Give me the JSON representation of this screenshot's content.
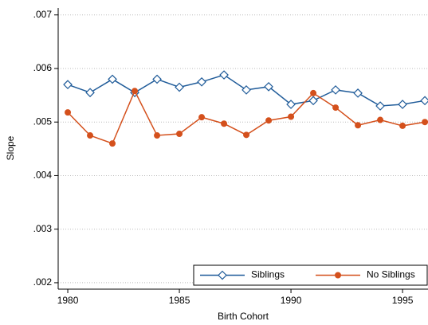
{
  "chart_data": {
    "type": "line",
    "x_label": "Birth Cohort",
    "y_label": "Slope",
    "x": [
      1980,
      1981,
      1982,
      1983,
      1984,
      1985,
      1986,
      1987,
      1988,
      1989,
      1990,
      1991,
      1992,
      1993,
      1994,
      1995,
      1996
    ],
    "series": [
      {
        "name": "Siblings",
        "color": "#1f5b99",
        "marker": "diamond-open",
        "values": [
          0.0057,
          0.00555,
          0.0058,
          0.00555,
          0.0058,
          0.00565,
          0.00575,
          0.00588,
          0.0056,
          0.00566,
          0.00533,
          0.0054,
          0.0056,
          0.00554,
          0.0053,
          0.00533,
          0.0054
        ]
      },
      {
        "name": "No Siblings",
        "color": "#d4501c",
        "marker": "circle",
        "values": [
          0.00518,
          0.00475,
          0.0046,
          0.00558,
          0.00475,
          0.00478,
          0.00509,
          0.00497,
          0.00476,
          0.00503,
          0.0051,
          0.00554,
          0.00527,
          0.00494,
          0.00504,
          0.00493,
          0.005
        ]
      }
    ],
    "xlim": [
      1979.57,
      1996.14
    ],
    "xticks": [
      1980,
      1985,
      1990,
      1995
    ],
    "ylim": [
      0.00188,
      0.00713
    ],
    "yticks": [
      {
        "value": 0.002,
        "label": ".002"
      },
      {
        "value": 0.003,
        "label": ".003"
      },
      {
        "value": 0.004,
        "label": ".004"
      },
      {
        "value": 0.005,
        "label": ".005"
      },
      {
        "value": 0.006,
        "label": ".006"
      },
      {
        "value": 0.007,
        "label": ".007"
      }
    ],
    "grid": true,
    "legend": "bottom-right"
  }
}
